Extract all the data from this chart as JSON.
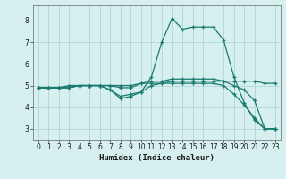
{
  "xlabel": "Humidex (Indice chaleur)",
  "bg_color": "#d6f0f0",
  "grid_color": "#b0d4d4",
  "line_color": "#1a7a6e",
  "xlim": [
    -0.5,
    23.5
  ],
  "ylim": [
    2.5,
    8.7
  ],
  "xticks": [
    0,
    1,
    2,
    3,
    4,
    5,
    6,
    7,
    8,
    9,
    10,
    11,
    12,
    13,
    14,
    15,
    16,
    17,
    18,
    19,
    20,
    21,
    22,
    23
  ],
  "yticks": [
    3,
    4,
    5,
    6,
    7,
    8
  ],
  "series1_x": [
    0,
    1,
    2,
    3,
    4,
    5,
    6,
    7,
    8,
    9,
    10,
    11,
    12,
    13,
    14,
    15,
    16,
    17,
    18,
    19,
    20,
    21,
    22,
    23
  ],
  "series1_y": [
    4.9,
    4.9,
    4.9,
    4.9,
    5.0,
    5.0,
    5.0,
    5.0,
    5.0,
    5.0,
    5.1,
    5.1,
    5.1,
    5.2,
    5.2,
    5.2,
    5.2,
    5.2,
    5.2,
    5.2,
    5.2,
    5.2,
    5.1,
    5.1
  ],
  "series2_x": [
    0,
    1,
    2,
    3,
    4,
    5,
    6,
    7,
    8,
    9,
    10,
    11,
    12,
    13,
    14,
    15,
    16,
    17,
    18,
    19,
    20,
    21,
    22,
    23
  ],
  "series2_y": [
    4.9,
    4.9,
    4.9,
    5.0,
    5.0,
    5.0,
    5.0,
    4.8,
    4.4,
    4.5,
    4.7,
    5.4,
    7.0,
    8.1,
    7.6,
    7.7,
    7.7,
    7.7,
    7.1,
    5.4,
    4.2,
    3.4,
    3.0,
    3.0
  ],
  "series3_x": [
    0,
    1,
    2,
    3,
    4,
    5,
    6,
    7,
    8,
    9,
    10,
    11,
    12,
    13,
    14,
    15,
    16,
    17,
    18,
    19,
    20,
    21,
    22,
    23
  ],
  "series3_y": [
    4.9,
    4.9,
    4.9,
    4.9,
    5.0,
    5.0,
    5.0,
    5.0,
    4.9,
    4.9,
    5.1,
    5.2,
    5.2,
    5.3,
    5.3,
    5.3,
    5.3,
    5.3,
    5.2,
    5.0,
    4.8,
    4.3,
    3.0,
    3.0
  ],
  "series4_x": [
    0,
    1,
    2,
    3,
    4,
    5,
    6,
    7,
    8,
    9,
    10,
    11,
    12,
    13,
    14,
    15,
    16,
    17,
    18,
    19,
    20,
    21,
    22,
    23
  ],
  "series4_y": [
    4.9,
    4.9,
    4.9,
    4.9,
    5.0,
    5.0,
    5.0,
    4.8,
    4.5,
    4.6,
    4.7,
    5.0,
    5.1,
    5.1,
    5.1,
    5.1,
    5.1,
    5.1,
    5.0,
    4.6,
    4.1,
    3.5,
    3.0,
    3.0
  ]
}
